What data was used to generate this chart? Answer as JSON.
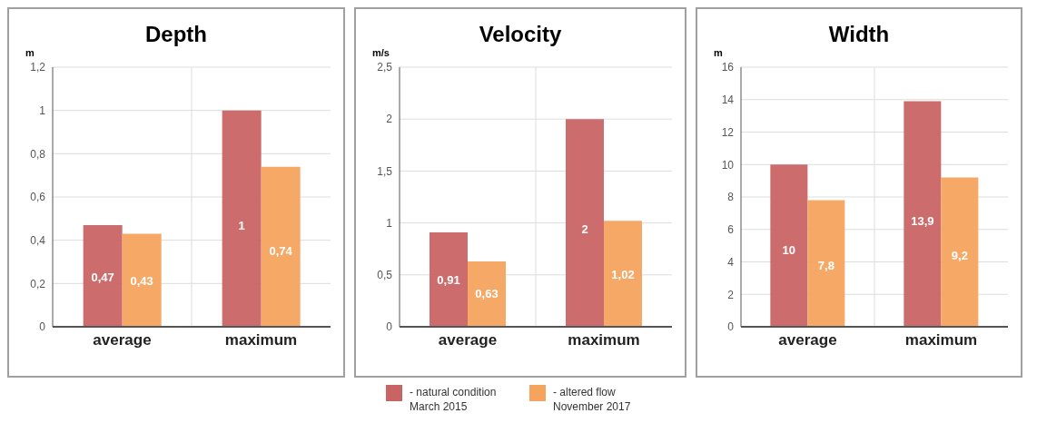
{
  "chart_data": [
    {
      "type": "bar",
      "title": "Depth",
      "ylabel": "m",
      "categories": [
        "average",
        "maximum"
      ],
      "series": [
        {
          "color": "#c96464",
          "values": [
            0.47,
            1
          ],
          "value_labels": [
            "0,47",
            "1"
          ]
        },
        {
          "color": "#f5a35f",
          "values": [
            0.43,
            0.74
          ],
          "value_labels": [
            "0,43",
            "0,74"
          ]
        }
      ],
      "ylim": [
        0,
        1.2
      ],
      "yticks": [
        0,
        {
          "value": 0.2,
          "label": "0,2"
        },
        {
          "value": 0.4,
          "label": "0,4"
        },
        {
          "value": 0.6,
          "label": "0,6"
        },
        {
          "value": 0.8,
          "label": "0,8"
        },
        1,
        {
          "value": 1.2,
          "label": "1,2"
        }
      ],
      "grid": true
    },
    {
      "type": "bar",
      "title": "Velocity",
      "ylabel": "m/s",
      "categories": [
        "average",
        "maximum"
      ],
      "series": [
        {
          "name": "- natural condition March 2015",
          "color": "#c96464",
          "values": [
            0.91,
            2
          ],
          "value_labels": [
            "0,91",
            "2"
          ]
        },
        {
          "name": "- altered flow November 2017",
          "color": "#f5a35f",
          "values": [
            0.63,
            1.02
          ],
          "value_labels": [
            "0,63",
            "1,02"
          ]
        }
      ],
      "ylim": [
        0,
        2.5
      ],
      "yticks": [
        0,
        {
          "value": 0.5,
          "label": "0,5"
        },
        1,
        {
          "value": 1.5,
          "label": "1,5"
        },
        2,
        {
          "value": 2.5,
          "label": "2,5"
        }
      ],
      "grid": true,
      "legend": "bottom"
    },
    {
      "type": "bar",
      "title": "Width",
      "ylabel": "m",
      "categories": [
        "average",
        "maximum"
      ],
      "series": [
        {
          "color": "#c96464",
          "values": [
            10,
            13.9
          ],
          "value_labels": [
            "10",
            "13,9"
          ]
        },
        {
          "color": "#f5a35f",
          "values": [
            7.8,
            9.2
          ],
          "value_labels": [
            "7,8",
            "9,2"
          ]
        }
      ],
      "ylim": [
        0,
        16
      ],
      "yticks": [
        0,
        2,
        4,
        6,
        8,
        10,
        12,
        14,
        16
      ],
      "grid": true
    }
  ]
}
